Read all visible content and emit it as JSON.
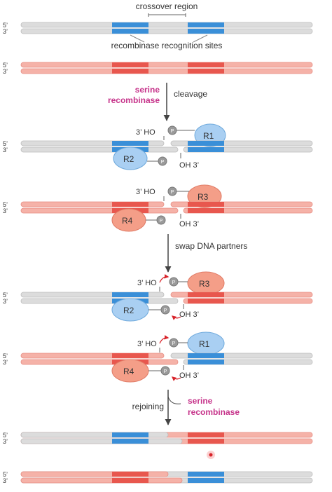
{
  "labels": {
    "crossover_region": "crossover region",
    "recognition_sites": "recombinase recognition sites",
    "serine": "serine",
    "recombinase": "recombinase",
    "cleavage": "cleavage",
    "swap": "swap DNA partners",
    "rejoining": "rejoining",
    "serine2": "serine",
    "recombinase2": "recombinase",
    "ho_3": "3’ HO",
    "oh_3": "OH 3’",
    "p": "P"
  },
  "strand_labels": {
    "five": "5’",
    "three": "3’"
  },
  "proteins": {
    "r1": "R1",
    "r2": "R2",
    "r3": "R3",
    "r4": "R4"
  },
  "colors": {
    "grey_strand": "#dcdcdc",
    "red_strand": "#f5b2a8",
    "blue_site": "#3a8fd8",
    "red_site": "#e8574e",
    "blue_protein": "#a9cff2",
    "red_protein": "#f49e88",
    "accent": "#c6338a",
    "arrow_red": "#d8232a"
  }
}
